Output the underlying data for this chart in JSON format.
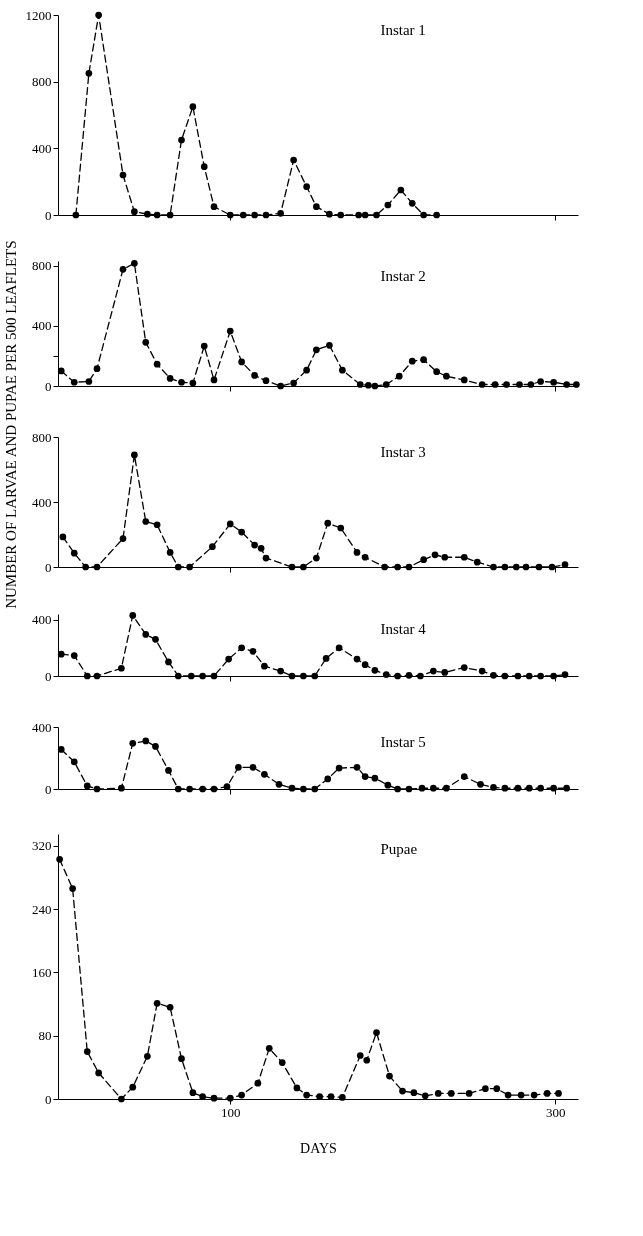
{
  "chart_data": [
    {
      "type": "line",
      "title": "Instar 1",
      "ylabel": "NUMBER OF LARVAE AND PUPAE PER 500 LEAFLETS",
      "color": "#000000",
      "marker": "circle",
      "line_style": "dashed",
      "tick_labels": "y",
      "xlim": [
        -6,
        314
      ],
      "xticks": [
        100,
        300
      ],
      "ylim": [
        0,
        1200
      ],
      "yticks": [
        0,
        400,
        800,
        1200
      ],
      "x": [
        5,
        13,
        19,
        34,
        41,
        49,
        55,
        63,
        70,
        77,
        84,
        90,
        100,
        108,
        115,
        122,
        131,
        139,
        147,
        153,
        161,
        168,
        179,
        183,
        190,
        197,
        205,
        212,
        219,
        227
      ],
      "values": [
        0,
        850,
        1200,
        240,
        20,
        5,
        0,
        0,
        450,
        650,
        290,
        50,
        0,
        0,
        0,
        0,
        10,
        330,
        170,
        50,
        5,
        0,
        0,
        0,
        0,
        60,
        150,
        70,
        0,
        0
      ]
    },
    {
      "type": "line",
      "title": "Instar 2",
      "color": "#000000",
      "marker": "circle",
      "line_style": "dashed",
      "tick_labels": "y",
      "xlim": [
        -6,
        314
      ],
      "xticks": [
        100,
        300
      ],
      "ylim": [
        0,
        830
      ],
      "yticks": [
        0,
        {
          "value": 200,
          "label": null
        },
        400,
        800
      ],
      "x": [
        -4,
        4,
        13,
        18,
        34,
        41,
        48,
        55,
        63,
        70,
        77,
        84,
        90,
        100,
        107,
        115,
        122,
        131,
        139,
        147,
        153,
        161,
        169,
        180,
        185,
        189,
        196,
        204,
        212,
        219,
        227,
        233,
        244,
        255,
        263,
        270,
        278,
        285,
        291,
        299,
        307,
        313
      ],
      "values": [
        100,
        25,
        30,
        115,
        775,
        815,
        290,
        145,
        50,
        25,
        20,
        265,
        40,
        365,
        160,
        70,
        35,
        0,
        20,
        105,
        240,
        270,
        105,
        10,
        5,
        0,
        10,
        65,
        165,
        175,
        95,
        65,
        40,
        10,
        10,
        10,
        10,
        10,
        30,
        25,
        10,
        10
      ]
    },
    {
      "type": "line",
      "title": "Instar 3",
      "color": "#000000",
      "marker": "circle",
      "line_style": "dashed",
      "tick_labels": "y",
      "xlim": [
        -6,
        314
      ],
      "xticks": [
        100,
        300
      ],
      "ylim": [
        0,
        800
      ],
      "yticks": [
        0,
        400,
        800
      ],
      "x": [
        -3,
        4,
        11,
        18,
        34,
        41,
        48,
        55,
        63,
        68,
        75,
        89,
        100,
        107,
        115,
        119,
        122,
        138,
        145,
        153,
        160,
        168,
        178,
        183,
        195,
        203,
        210,
        219,
        226,
        232,
        244,
        252,
        262,
        269,
        276,
        282,
        290,
        298,
        306
      ],
      "values": [
        185,
        85,
        0,
        0,
        175,
        690,
        280,
        260,
        90,
        0,
        0,
        125,
        265,
        215,
        135,
        115,
        55,
        0,
        0,
        55,
        270,
        240,
        90,
        60,
        0,
        0,
        0,
        45,
        75,
        60,
        60,
        30,
        0,
        0,
        0,
        0,
        0,
        0,
        15
      ]
    },
    {
      "type": "line",
      "title": "Instar 4",
      "color": "#000000",
      "marker": "circle",
      "line_style": "dashed",
      "tick_labels": "y",
      "xlim": [
        -6,
        314
      ],
      "xticks": [
        100,
        300
      ],
      "ylim": [
        0,
        440
      ],
      "yticks": [
        0,
        400
      ],
      "x": [
        -4,
        4,
        12,
        18,
        33,
        40,
        48,
        54,
        62,
        68,
        76,
        83,
        90,
        99,
        107,
        114,
        121,
        131,
        138,
        145,
        152,
        159,
        167,
        178,
        183,
        189,
        196,
        203,
        210,
        217,
        225,
        232,
        244,
        255,
        262,
        269,
        277,
        284,
        291,
        299,
        306
      ],
      "values": [
        155,
        145,
        0,
        0,
        55,
        430,
        295,
        260,
        100,
        0,
        0,
        0,
        0,
        120,
        200,
        175,
        70,
        35,
        0,
        0,
        0,
        125,
        200,
        120,
        80,
        40,
        10,
        0,
        5,
        0,
        35,
        25,
        60,
        35,
        5,
        0,
        0,
        0,
        0,
        0,
        10
      ]
    },
    {
      "type": "line",
      "title": "Instar 5",
      "color": "#000000",
      "marker": "circle",
      "line_style": "dashed",
      "tick_labels": "y",
      "xlim": [
        -6,
        314
      ],
      "xticks": [
        100,
        300
      ],
      "ylim": [
        0,
        400
      ],
      "yticks": [
        0,
        400
      ],
      "x": [
        -4,
        4,
        12,
        18,
        33,
        40,
        48,
        54,
        62,
        68,
        75,
        83,
        90,
        98,
        105,
        114,
        121,
        130,
        138,
        145,
        152,
        160,
        167,
        178,
        183,
        189,
        197,
        203,
        210,
        218,
        225,
        233,
        244,
        254,
        262,
        269,
        277,
        284,
        291,
        299,
        307
      ],
      "values": [
        255,
        175,
        20,
        0,
        5,
        295,
        310,
        275,
        120,
        0,
        0,
        0,
        0,
        15,
        140,
        140,
        95,
        30,
        5,
        0,
        0,
        65,
        135,
        140,
        80,
        70,
        25,
        0,
        0,
        5,
        5,
        5,
        80,
        30,
        10,
        5,
        5,
        5,
        5,
        5,
        5
      ]
    },
    {
      "type": "line",
      "title": "Pupae",
      "xlabel": "DAYS",
      "color": "#000000",
      "marker": "circle",
      "line_style": "dashed",
      "xlim": [
        -6,
        314
      ],
      "xticks": [
        100,
        300
      ],
      "ylim": [
        0,
        335
      ],
      "yticks": [
        0,
        80,
        160,
        240,
        320
      ],
      "x": [
        -5,
        3,
        12,
        19,
        33,
        40,
        49,
        55,
        63,
        70,
        77,
        83,
        90,
        100,
        107,
        117,
        124,
        132,
        141,
        147,
        155,
        162,
        169,
        180,
        184,
        190,
        198,
        206,
        213,
        220,
        228,
        236,
        247,
        257,
        264,
        271,
        279,
        287,
        295,
        302
      ],
      "values": [
        303,
        266,
        60,
        33,
        0,
        15,
        54,
        121,
        116,
        51,
        8,
        3,
        1,
        1,
        5,
        20,
        64,
        46,
        14,
        5,
        3,
        3,
        2,
        55,
        49,
        84,
        29,
        10,
        8,
        4,
        7,
        7,
        7,
        13,
        13,
        5,
        5,
        5,
        7,
        7
      ]
    }
  ]
}
